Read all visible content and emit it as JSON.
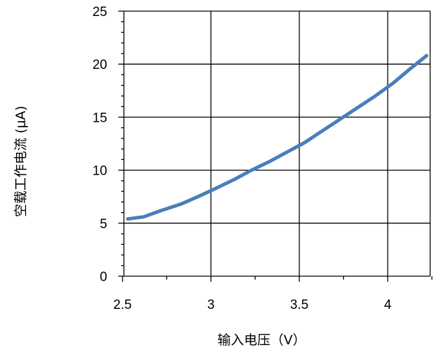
{
  "chart_data": {
    "type": "line",
    "title": "",
    "xlabel": "输入电压（V）",
    "ylabel": "空载工作电流 (μA)",
    "xlim": [
      2.5,
      4.25
    ],
    "ylim": [
      0,
      25
    ],
    "x_ticks": [
      2.5,
      3,
      3.5,
      4
    ],
    "x_tick_labels": [
      "2.5",
      "3",
      "3.5",
      "4"
    ],
    "y_ticks": [
      0,
      5,
      10,
      15,
      20,
      25
    ],
    "y_tick_labels": [
      "0",
      "5",
      "10",
      "15",
      "20",
      "25"
    ],
    "grid": true,
    "legend": "none",
    "series": [
      {
        "color": "#4a7ebb",
        "x": [
          2.53,
          2.62,
          2.72,
          2.83,
          2.94,
          3.03,
          3.13,
          3.23,
          3.33,
          3.43,
          3.53,
          3.63,
          3.73,
          3.83,
          3.93,
          4.03,
          4.13,
          4.22
        ],
        "y": [
          5.4,
          5.6,
          6.2,
          6.8,
          7.6,
          8.3,
          9.1,
          10.0,
          10.8,
          11.7,
          12.6,
          13.7,
          14.8,
          15.9,
          17.0,
          18.2,
          19.6,
          20.8
        ]
      }
    ]
  }
}
